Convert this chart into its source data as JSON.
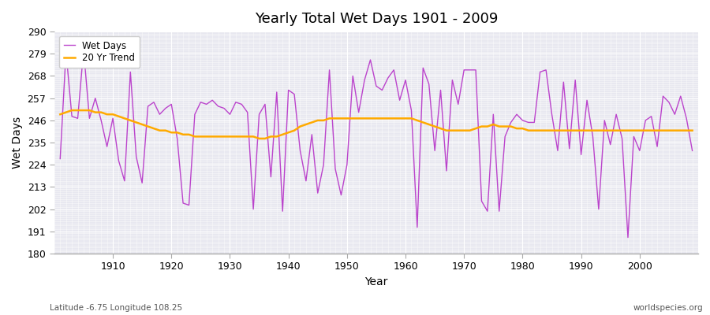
{
  "title": "Yearly Total Wet Days 1901 - 2009",
  "xlabel": "Year",
  "ylabel": "Wet Days",
  "footnote_left": "Latitude -6.75 Longitude 108.25",
  "footnote_right": "worldspecies.org",
  "ylim": [
    180,
    290
  ],
  "yticks": [
    180,
    191,
    202,
    213,
    224,
    235,
    246,
    257,
    268,
    279,
    290
  ],
  "wet_days_color": "#bb44cc",
  "trend_color": "#ffaa00",
  "plot_bg_color": "#e8e8f0",
  "fig_bg_color": "#ffffff",
  "years": [
    1901,
    1902,
    1903,
    1904,
    1905,
    1906,
    1907,
    1908,
    1909,
    1910,
    1911,
    1912,
    1913,
    1914,
    1915,
    1916,
    1917,
    1918,
    1919,
    1920,
    1921,
    1922,
    1923,
    1924,
    1925,
    1926,
    1927,
    1928,
    1929,
    1930,
    1931,
    1932,
    1933,
    1934,
    1935,
    1936,
    1937,
    1938,
    1939,
    1940,
    1941,
    1942,
    1943,
    1944,
    1945,
    1946,
    1947,
    1948,
    1949,
    1950,
    1951,
    1952,
    1953,
    1954,
    1955,
    1956,
    1957,
    1958,
    1959,
    1960,
    1961,
    1962,
    1963,
    1964,
    1965,
    1966,
    1967,
    1968,
    1969,
    1970,
    1971,
    1972,
    1973,
    1974,
    1975,
    1976,
    1977,
    1978,
    1979,
    1980,
    1981,
    1982,
    1983,
    1984,
    1985,
    1986,
    1987,
    1988,
    1989,
    1990,
    1991,
    1992,
    1993,
    1994,
    1995,
    1996,
    1997,
    1998,
    1999,
    2000,
    2001,
    2002,
    2003,
    2004,
    2005,
    2006,
    2007,
    2008,
    2009
  ],
  "wet_days": [
    227,
    280,
    248,
    247,
    281,
    247,
    257,
    246,
    233,
    247,
    226,
    216,
    270,
    228,
    215,
    253,
    255,
    249,
    252,
    254,
    237,
    205,
    204,
    249,
    255,
    254,
    256,
    253,
    252,
    249,
    255,
    254,
    250,
    202,
    249,
    254,
    218,
    260,
    201,
    261,
    259,
    231,
    216,
    239,
    210,
    224,
    271,
    222,
    209,
    224,
    268,
    250,
    266,
    276,
    263,
    261,
    267,
    271,
    256,
    266,
    251,
    193,
    272,
    264,
    231,
    261,
    221,
    266,
    254,
    271,
    271,
    271,
    206,
    201,
    249,
    201,
    238,
    245,
    249,
    246,
    245,
    245,
    270,
    271,
    249,
    231,
    265,
    232,
    266,
    229,
    256,
    238,
    202,
    246,
    234,
    249,
    237,
    188,
    238,
    231,
    246,
    248,
    233,
    258,
    255,
    249,
    258,
    247,
    231
  ],
  "trend_years": [
    1901,
    1902,
    1903,
    1904,
    1905,
    1906,
    1907,
    1908,
    1909,
    1910,
    1911,
    1912,
    1913,
    1914,
    1915,
    1916,
    1917,
    1918,
    1919,
    1920,
    1921,
    1922,
    1923,
    1924,
    1925,
    1926,
    1927,
    1928,
    1929,
    1930,
    1931,
    1932,
    1933,
    1934,
    1935,
    1936,
    1937,
    1938,
    1939,
    1940,
    1941,
    1942,
    1943,
    1944,
    1945,
    1946,
    1947,
    1948,
    1949,
    1950,
    1951,
    1952,
    1953,
    1954,
    1955,
    1956,
    1957,
    1958,
    1959,
    1960,
    1961,
    1962,
    1963,
    1964,
    1965,
    1966,
    1967,
    1968,
    1969,
    1970,
    1971,
    1972,
    1973,
    1974,
    1975,
    1976,
    1977,
    1978,
    1979,
    1980,
    1981,
    1982,
    1983,
    1984,
    1985,
    1986,
    1987,
    1988,
    1989,
    1990,
    1991,
    1992,
    1993,
    1994,
    1995,
    1996,
    1997,
    1998,
    1999,
    2000,
    2001,
    2002,
    2003,
    2004,
    2005,
    2006,
    2007,
    2008,
    2009
  ],
  "trend_values": [
    249,
    250,
    251,
    251,
    251,
    251,
    250,
    250,
    249,
    249,
    248,
    247,
    246,
    245,
    244,
    243,
    242,
    241,
    241,
    240,
    240,
    239,
    239,
    238,
    238,
    238,
    238,
    238,
    238,
    238,
    238,
    238,
    238,
    238,
    237,
    237,
    238,
    238,
    239,
    240,
    241,
    243,
    244,
    245,
    246,
    246,
    247,
    247,
    247,
    247,
    247,
    247,
    247,
    247,
    247,
    247,
    247,
    247,
    247,
    247,
    247,
    246,
    245,
    244,
    243,
    242,
    241,
    241,
    241,
    241,
    241,
    242,
    243,
    243,
    244,
    243,
    243,
    243,
    242,
    242,
    241,
    241,
    241,
    241,
    241,
    241,
    241,
    241,
    241,
    241,
    241,
    241,
    241,
    241,
    241,
    241,
    241,
    241,
    241,
    241,
    241,
    241,
    241,
    241,
    241,
    241,
    241,
    241,
    241
  ]
}
